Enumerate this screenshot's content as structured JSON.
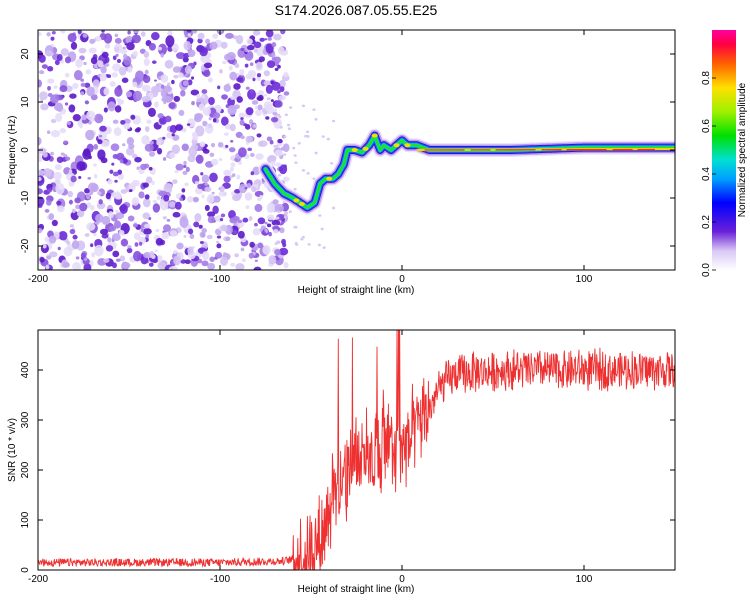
{
  "title": "S174.2026.087.05.55.E25",
  "chart_data": [
    {
      "type": "heatmap",
      "name": "spectrogram",
      "xlabel": "Height of straight line (km)",
      "ylabel": "Frequency (Hz)",
      "xlim": [
        -200,
        150
      ],
      "ylim": [
        -25,
        25
      ],
      "xticks": [
        -200,
        -100,
        0,
        100
      ],
      "yticks": [
        -20,
        -10,
        0,
        10,
        20
      ],
      "noise_region_x": [
        -200,
        -70
      ],
      "signal_track": {
        "x": [
          -75,
          -70,
          -65,
          -60,
          -56,
          -52,
          -48,
          -45,
          -42,
          -38,
          -35,
          -32,
          -30,
          -26,
          -22,
          -18,
          -15,
          -12,
          -10,
          -6,
          -3,
          0,
          3,
          8,
          15,
          30,
          60,
          100,
          150
        ],
        "y": [
          -4,
          -7,
          -9,
          -10,
          -11,
          -12,
          -11,
          -7,
          -6,
          -6,
          -5,
          -3,
          0,
          0,
          -0.5,
          1,
          3,
          0,
          1,
          0,
          1,
          2,
          1,
          1,
          0,
          0,
          0,
          0.5,
          0.5
        ]
      },
      "colorbar": {
        "label": "Normalized spectral amplitude",
        "range": [
          0,
          1
        ],
        "ticks": [
          0.0,
          0.2,
          0.4,
          0.6,
          0.8
        ],
        "tick_labels": [
          "0.0",
          "0.2",
          "0.4",
          "0.6",
          "0.8"
        ]
      }
    },
    {
      "type": "line",
      "name": "snr",
      "xlabel": "Height of straight line (km)",
      "ylabel": "SNR (10 * v/v)",
      "xlim": [
        -200,
        150
      ],
      "ylim": [
        0,
        480
      ],
      "xticks": [
        -200,
        -100,
        0,
        100
      ],
      "yticks": [
        0,
        100,
        200,
        300,
        400
      ],
      "color": "#ee3030",
      "envelope": {
        "x": [
          -200,
          -150,
          -100,
          -65,
          -55,
          -45,
          -40,
          -35,
          -30,
          -25,
          -20,
          -15,
          -10,
          -5,
          0,
          5,
          10,
          15,
          20,
          25,
          30,
          40,
          60,
          100,
          150
        ],
        "y": [
          15,
          15,
          15,
          18,
          25,
          60,
          120,
          180,
          200,
          220,
          250,
          230,
          240,
          240,
          250,
          260,
          300,
          320,
          360,
          380,
          390,
          395,
          400,
          400,
          400
        ]
      },
      "noise_amplitude": [
        8,
        50
      ]
    }
  ]
}
